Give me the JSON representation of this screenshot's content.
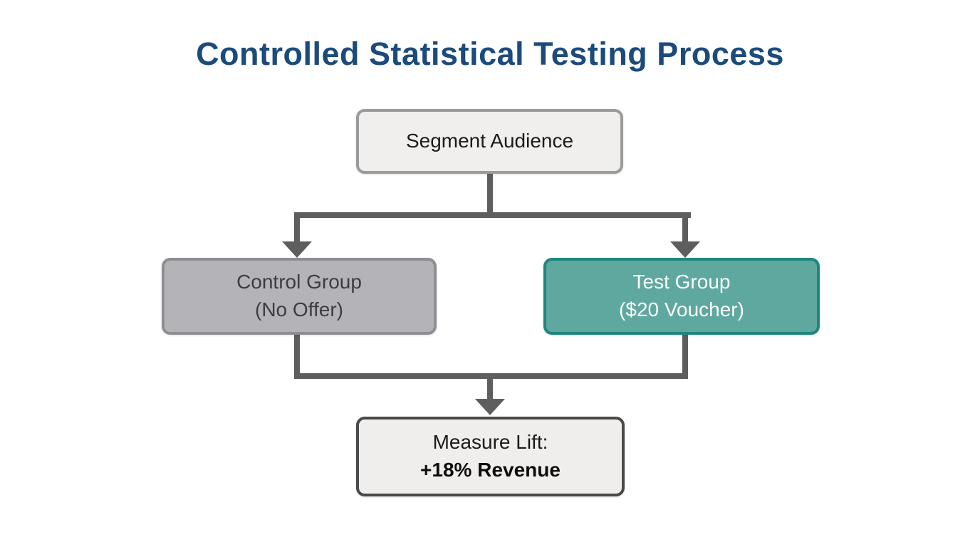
{
  "title": "Controlled Statistical Testing Process",
  "colors": {
    "background": "#ffffff",
    "title_text": "#1c4b7b",
    "connector": "#5e5e5e",
    "node_text": "#1b1b1b",
    "segment_fill": "#f0efed",
    "segment_border": "#9b9b9b",
    "control_fill": "#b4b3b8",
    "control_border": "#8f8e93",
    "control_text": "#3d3d40",
    "test_fill": "#5fa8a0",
    "test_border": "#1f867d",
    "test_text": "#fafdfc",
    "measure_fill": "#efeeec",
    "measure_border": "#4a4a4a"
  },
  "nodes": {
    "segment": {
      "label": "Segment Audience"
    },
    "control": {
      "line1": "Control Group",
      "line2": "(No Offer)"
    },
    "test": {
      "line1": "Test Group",
      "line2": "($20 Voucher)"
    },
    "measure": {
      "line1": "Measure Lift:",
      "line2": "+18% Revenue"
    }
  },
  "edges": [
    {
      "from": "segment",
      "to": "control"
    },
    {
      "from": "segment",
      "to": "test"
    },
    {
      "from": "control",
      "to": "measure"
    },
    {
      "from": "test",
      "to": "measure"
    }
  ]
}
